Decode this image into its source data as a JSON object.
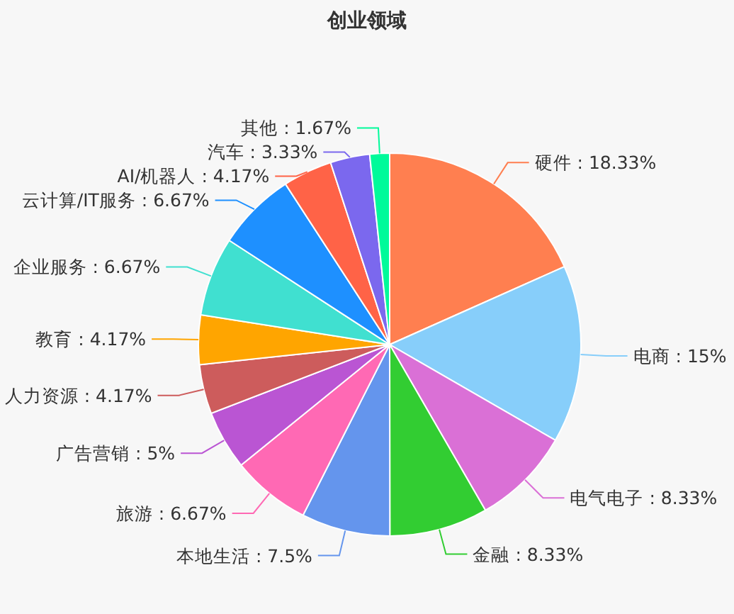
{
  "chart_data": {
    "type": "pie",
    "title": "创业领域",
    "categories": [
      "硬件",
      "电商",
      "电气电子",
      "金融",
      "本地生活",
      "旅游",
      "广告营销",
      "人力资源",
      "教育",
      "企业服务",
      "云计算/IT服务",
      "AI/机器人",
      "汽车",
      "其他"
    ],
    "values": [
      18.33,
      15,
      8.33,
      8.33,
      7.5,
      6.67,
      5,
      4.17,
      4.17,
      6.67,
      6.67,
      4.17,
      3.33,
      1.67
    ],
    "value_labels": [
      "18.33%",
      "15%",
      "8.33%",
      "8.33%",
      "7.5%",
      "6.67%",
      "5%",
      "4.17%",
      "4.17%",
      "6.67%",
      "6.67%",
      "4.17%",
      "3.33%",
      "1.67%"
    ],
    "colors": [
      "#ff7f50",
      "#87cefa",
      "#da70d6",
      "#32cd32",
      "#6495ed",
      "#ff69b4",
      "#ba55d3",
      "#cd5c5c",
      "#ffa500",
      "#40e0d0",
      "#1e90ff",
      "#ff6347",
      "#7b68ee",
      "#00fa9a"
    ]
  }
}
